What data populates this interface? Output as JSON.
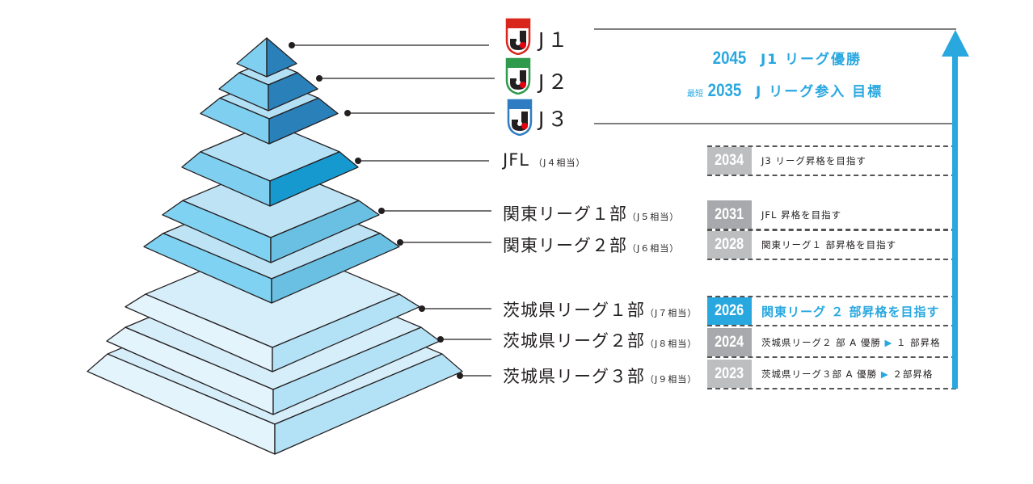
{
  "pyramid_levels": [
    {
      "name": "J1",
      "label": "J１",
      "equiv": "",
      "logo_color": "#d9261c"
    },
    {
      "name": "J2",
      "label": "J２",
      "equiv": "",
      "logo_color": "#2e9a4b"
    },
    {
      "name": "J3",
      "label": "J３",
      "equiv": "",
      "logo_color": "#2f7cc2"
    },
    {
      "name": "JFL",
      "label": "JFL",
      "equiv": "（J４相当）"
    },
    {
      "name": "kanto1",
      "label": "関東リーグ１部",
      "equiv": "（J５相当）"
    },
    {
      "name": "kanto2",
      "label": "関東リーグ２部",
      "equiv": "（J６相当）"
    },
    {
      "name": "ibaraki1",
      "label": "茨城県リーグ１部",
      "equiv": "（J７相当）"
    },
    {
      "name": "ibaraki2",
      "label": "茨城県リーグ２部",
      "equiv": "（J８相当）"
    },
    {
      "name": "ibaraki3",
      "label": "茨城県リーグ３部",
      "equiv": "（J９相当）"
    }
  ],
  "goals": [
    {
      "prefix": "",
      "year": "2045",
      "text": "J1 リーグ優勝"
    },
    {
      "prefix": "最短",
      "year": "2035",
      "text": "J リーグ参入 目標"
    }
  ],
  "timeline": [
    {
      "year": "2034",
      "text": "J3 リーグ昇格を目指す",
      "color": "#bcbec0",
      "highlight": false
    },
    {
      "year": "2031",
      "text": "JFL 昇格を目指す",
      "color": "#a7a9ac",
      "highlight": false
    },
    {
      "year": "2028",
      "text": "関東リーグ１ 部昇格を目指す",
      "color": "#bcbec0",
      "highlight": false
    },
    {
      "year": "2026",
      "text": "関東リーグ ２ 部昇格を目指す",
      "color": "#29a8e0",
      "highlight": true
    },
    {
      "year": "2024",
      "text": "茨城県リーグ２ 部 A 優勝",
      "arrow": "▶",
      "result": "１ 部昇格",
      "color": "#a7a9ac",
      "highlight": false
    },
    {
      "year": "2023",
      "text": "茨城県リーグ３部 A 優勝",
      "arrow": "▶",
      "result": "２部昇格",
      "color": "#bcbec0",
      "highlight": false
    }
  ],
  "colors": {
    "accent": "#29a8e0"
  }
}
